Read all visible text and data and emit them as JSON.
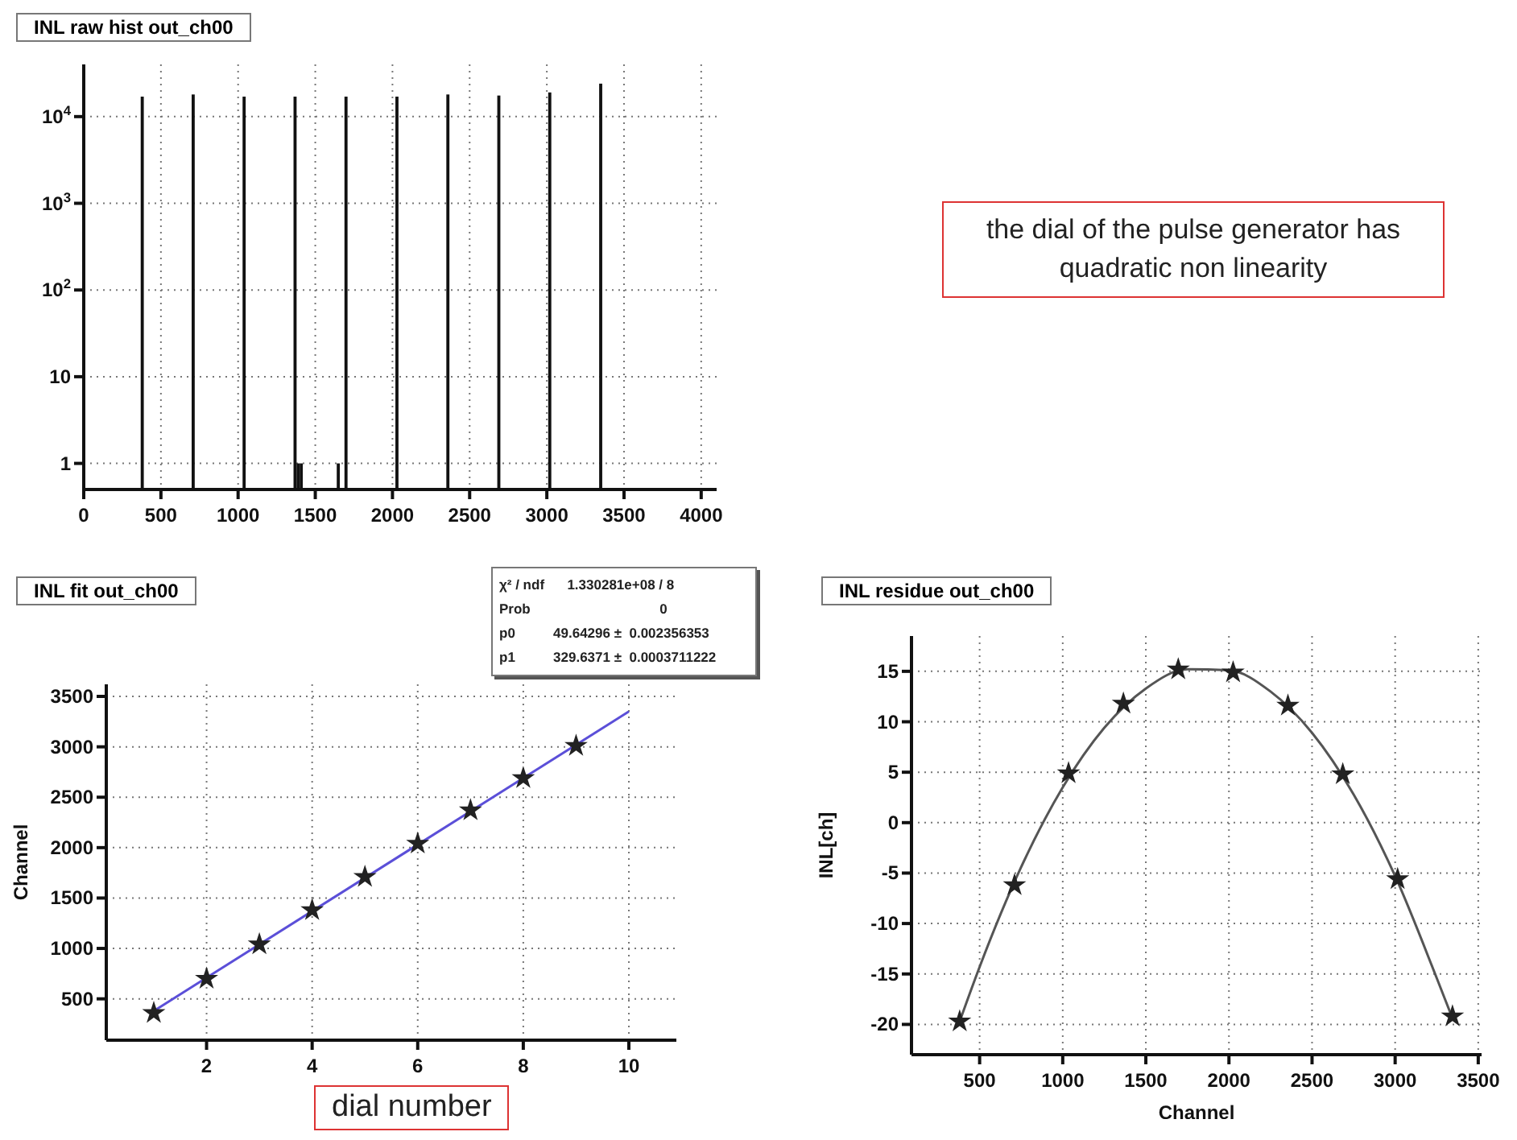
{
  "chart_data": [
    {
      "type": "histogram",
      "title": "INL raw hist out_ch00",
      "bins": [
        370,
        390,
        700,
        720,
        1030,
        1050,
        1360,
        1380,
        1400,
        1420,
        1640,
        1660,
        1690,
        1710,
        2020,
        2040,
        2350,
        2370,
        2680,
        2700,
        3010,
        3030,
        3340,
        3360
      ],
      "values": [
        17000,
        null,
        18000,
        null,
        17000,
        null,
        17000,
        1,
        1,
        null,
        1,
        null,
        17000,
        null,
        17000,
        null,
        18000,
        null,
        17500,
        null,
        19000,
        null,
        24000
      ],
      "color": "#111111",
      "log": true,
      "xlim": [
        0,
        4100
      ],
      "xticks": [
        0,
        500,
        1000,
        1500,
        2000,
        2500,
        3000,
        3500,
        4000
      ],
      "ylim": [
        0.5,
        40000
      ],
      "yticks": [
        1,
        10,
        {
          "value": 100,
          "label": "10$^{2}$"
        },
        {
          "value": 1000,
          "label": "10$^{3}$"
        },
        {
          "value": 10000,
          "label": "10$^{4}$"
        }
      ],
      "grid": true,
      "annotations": [
        "the dial of the pulse generator has quadratic non linearity"
      ]
    },
    {
      "type": "scatter",
      "title": "INL fit out_ch00",
      "xlabel": "dial number",
      "ylabel": "Channel",
      "grid": true,
      "xlim": [
        0.1,
        10.9
      ],
      "xticks": [
        2,
        4,
        6,
        8,
        10
      ],
      "ylim": [
        90,
        3620
      ],
      "yticks": [
        500,
        1000,
        1500,
        2000,
        2500,
        3000,
        3500
      ],
      "series": [
        {
          "type": "scatter",
          "marker": "star",
          "color": "#222222",
          "x": [
            1,
            2,
            3,
            4,
            5,
            6,
            7,
            8,
            9
          ],
          "values": [
            360,
            700,
            1040,
            1380,
            1710,
            2040,
            2370,
            2690,
            3010
          ]
        },
        {
          "type": "line",
          "color": "#5b4fd8",
          "x": [
            1,
            10
          ],
          "values": [
            380,
            3350
          ]
        }
      ],
      "annotations": [
        "χ² / ndf      1.330281e+08 / 8",
        "Prob                                  0",
        "p0          49.64296 ±  0.002356353",
        "p1          329.6371 ±  0.0003711222"
      ]
    },
    {
      "type": "scatter",
      "title": "INL residue out_ch00",
      "xlabel": "Channel",
      "ylabel": "INL[ch]",
      "grid": true,
      "xlim": [
        90,
        3520
      ],
      "xticks": [
        500,
        1000,
        1500,
        2000,
        2500,
        3000,
        3500
      ],
      "ylim": [
        -23,
        18.5
      ],
      "yticks": [
        -20,
        -15,
        -10,
        -5,
        0,
        5,
        10,
        15
      ],
      "series": [
        {
          "type": "scatter",
          "marker": "star",
          "color": "#222222",
          "x": [
            380,
            710,
            1035,
            1365,
            1695,
            2025,
            2355,
            2685,
            3015,
            3345
          ],
          "values": [
            -19.7,
            -6.2,
            4.9,
            11.8,
            15.2,
            14.9,
            11.6,
            4.8,
            -5.6,
            -19.2
          ]
        },
        {
          "type": "line",
          "color": "#555555",
          "x": [
            380,
            500,
            750,
            1000,
            1250,
            1500,
            1750,
            2000,
            2250,
            2500,
            2750,
            3000,
            3250,
            3345
          ],
          "values": [
            -19.7,
            -14.3,
            -4.4,
            3.5,
            9.4,
            13.3,
            15.2,
            15.1,
            13.0,
            8.9,
            2.8,
            -5.3,
            -15.4,
            -19.4
          ]
        }
      ]
    }
  ]
}
